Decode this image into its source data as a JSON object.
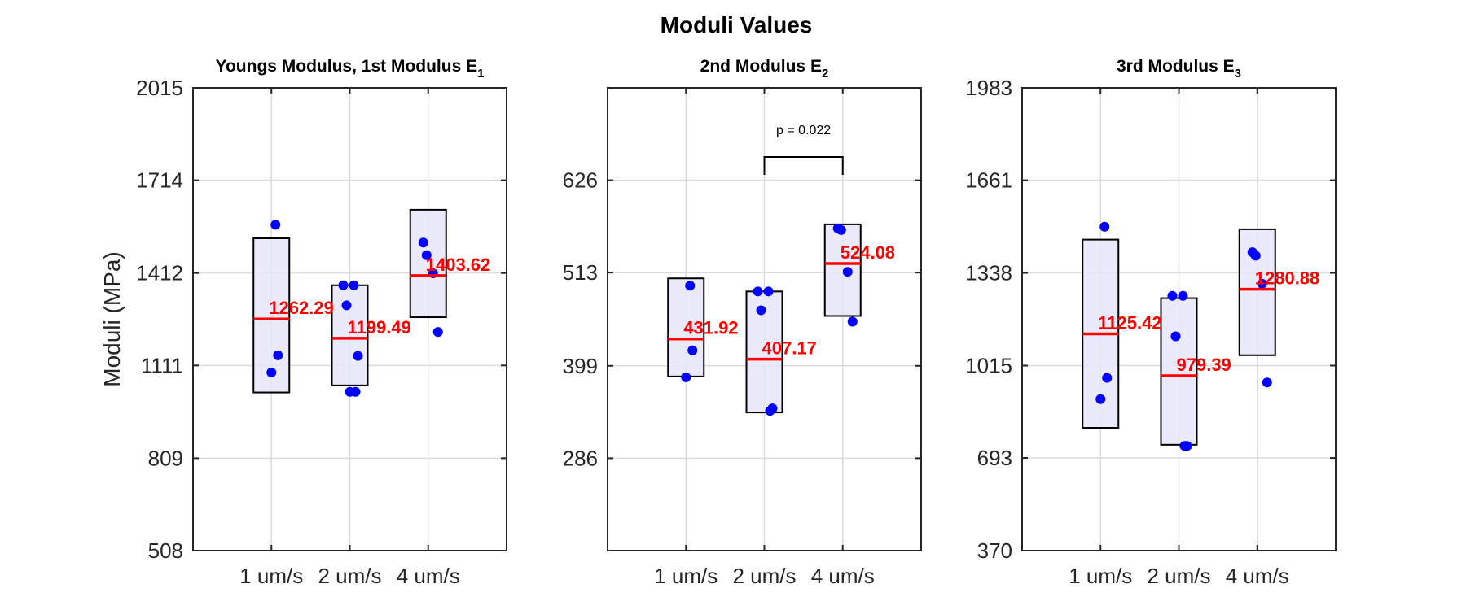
{
  "figure_title": "Moduli Values",
  "colors": {
    "point": "#0000ff",
    "mean_line": "#ff0000",
    "box_fill": "#e6e6fa",
    "box_edge": "#000000",
    "grid": "#dcdcdc"
  },
  "chart_data": [
    {
      "type": "box-scatter",
      "title": "Youngs Modulus, 1st Modulus E",
      "title_subscript": "1",
      "ylabel": "Moduli (MPa)",
      "xlabel": "",
      "categories": [
        "1 um/s",
        "2 um/s",
        "4 um/s"
      ],
      "yticks": [
        "508",
        "809",
        "1111",
        "1412",
        "1714",
        "2015"
      ],
      "ylim": [
        508,
        2015
      ],
      "grid": true,
      "means": [
        1262.29,
        1199.49,
        1403.62
      ],
      "mean_labels": [
        "1262.29",
        "1199.49",
        "1403.62"
      ],
      "boxes": [
        [
          1023,
          1525
        ],
        [
          1046,
          1372
        ],
        [
          1268,
          1618
        ]
      ],
      "points": [
        [
          1569,
          1144,
          1088
        ],
        [
          1372,
          1372,
          1307,
          1142,
          1025,
          1025
        ],
        [
          1511,
          1470,
          1411,
          1220
        ]
      ],
      "significance": []
    },
    {
      "type": "box-scatter",
      "title": "2nd Modulus E",
      "title_subscript": "2",
      "ylabel": "",
      "xlabel": "",
      "categories": [
        "1 um/s",
        "2 um/s",
        "4 um/s"
      ],
      "yticks": [
        "286",
        "399",
        "513",
        "626"
      ],
      "ylim": [
        173,
        739
      ],
      "grid": true,
      "means": [
        431.92,
        407.17,
        524.08
      ],
      "mean_labels": [
        "431.92",
        "407.17",
        "524.08"
      ],
      "boxes": [
        [
          386,
          506
        ],
        [
          342,
          490
        ],
        [
          460,
          572
        ]
      ],
      "points": [
        [
          497,
          418,
          385
        ],
        [
          490,
          490,
          467,
          347,
          344
        ],
        [
          567,
          565,
          514,
          453
        ]
      ],
      "significance": [
        {
          "from": 1,
          "to": 2,
          "label": "p = 0.022"
        }
      ]
    },
    {
      "type": "box-scatter",
      "title": "3rd Modulus E",
      "title_subscript": "3",
      "ylabel": "",
      "xlabel": "",
      "categories": [
        "1 um/s",
        "2 um/s",
        "4 um/s"
      ],
      "yticks": [
        "370",
        "693",
        "1015",
        "1338",
        "1661",
        "1983"
      ],
      "ylim": [
        370,
        1983
      ],
      "grid": true,
      "means": [
        1125.42,
        979.39,
        1280.88
      ],
      "mean_labels": [
        "1125.42",
        "979.39",
        "1280.88"
      ],
      "boxes": [
        [
          798,
          1454
        ],
        [
          739,
          1250
        ],
        [
          1051,
          1490
        ]
      ],
      "points": [
        [
          1499,
          972,
          898
        ],
        [
          1258,
          1258,
          1117,
          735,
          735
        ],
        [
          1410,
          1398,
          1300,
          956
        ]
      ],
      "significance": []
    }
  ]
}
